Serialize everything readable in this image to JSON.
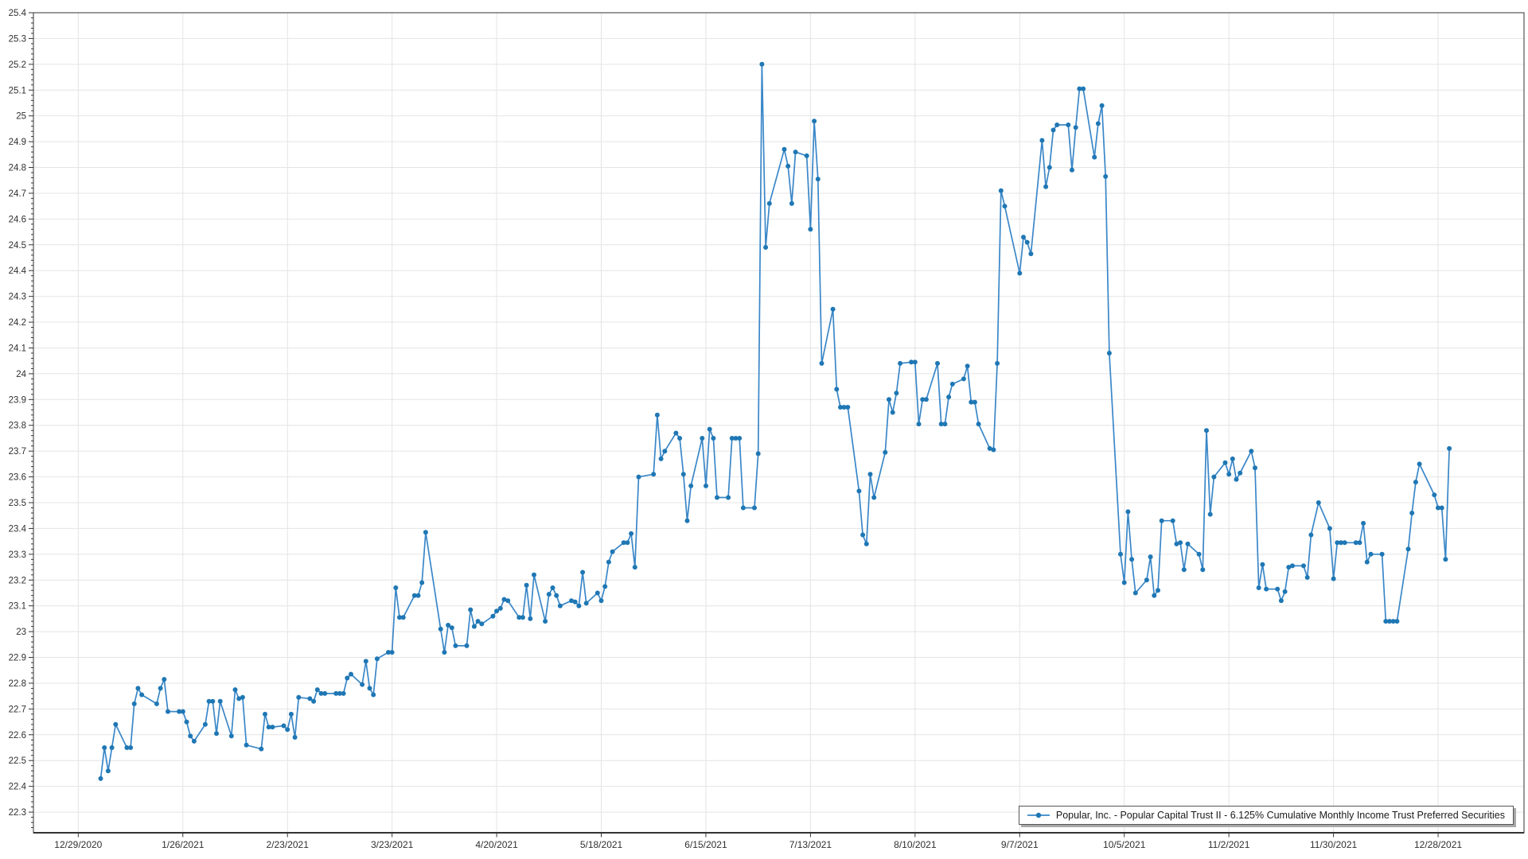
{
  "chart_data": {
    "type": "line",
    "title": "",
    "legend": {
      "label": "Popular, Inc. - Popular Capital Trust II - 6.125% Cumulative Monthly Income Trust Preferred Securities",
      "position": "bottom-right"
    },
    "grid": true,
    "x_range": [
      "2020-12-17",
      "2022-01-20"
    ],
    "y_range": [
      22.22,
      25.4
    ],
    "y_ticks": {
      "max": 25.4,
      "step": 0.1,
      "minor_step": 0.02
    },
    "y_tick_labels": [
      "25.4",
      "25.3",
      "25.2",
      "25.1",
      "25",
      "24.9",
      "24.8",
      "24.7",
      "24.6",
      "24.5",
      "24.4",
      "24.3",
      "24.2",
      "24.1",
      "24",
      "23.9",
      "23.8",
      "23.7",
      "23.6",
      "23.5",
      "23.4",
      "23.3",
      "23.2",
      "23.1",
      "23",
      "22.9",
      "22.8",
      "22.7",
      "22.6",
      "22.5",
      "22.4",
      "22.3"
    ],
    "x_ticks": {
      "dates": [
        "2020-12-29",
        "2021-01-26",
        "2021-02-23",
        "2021-03-23",
        "2021-04-20",
        "2021-05-18",
        "2021-06-15",
        "2021-07-13",
        "2021-08-10",
        "2021-09-07",
        "2021-10-05",
        "2021-11-02",
        "2021-11-30",
        "2021-12-28"
      ],
      "labels": [
        "12/29/2020",
        "1/26/2021",
        "2/23/2021",
        "3/23/2021",
        "4/20/2021",
        "5/18/2021",
        "6/15/2021",
        "7/13/2021",
        "8/10/2021",
        "9/7/2021",
        "10/5/2021",
        "11/2/2021",
        "11/30/2021",
        "12/28/2021"
      ]
    },
    "colors": {
      "line": "#3a87c8",
      "marker": "#1f77b4",
      "grid": "#e4e4e4",
      "axis": "#333333",
      "tick_label": "#303030"
    },
    "series": [
      {
        "name": "Popular, Inc. - Popular Capital Trust II - 6.125% Cumulative Monthly Income Trust Preferred Securities",
        "dates": [
          "2021-01-04",
          "2021-01-05",
          "2021-01-06",
          "2021-01-07",
          "2021-01-08",
          "2021-01-11",
          "2021-01-12",
          "2021-01-13",
          "2021-01-14",
          "2021-01-15",
          "2021-01-19",
          "2021-01-20",
          "2021-01-21",
          "2021-01-22",
          "2021-01-25",
          "2021-01-26",
          "2021-01-27",
          "2021-01-28",
          "2021-01-29",
          "2021-02-01",
          "2021-02-02",
          "2021-02-03",
          "2021-02-04",
          "2021-02-05",
          "2021-02-08",
          "2021-02-09",
          "2021-02-10",
          "2021-02-11",
          "2021-02-12",
          "2021-02-16",
          "2021-02-17",
          "2021-02-18",
          "2021-02-19",
          "2021-02-22",
          "2021-02-23",
          "2021-02-24",
          "2021-02-25",
          "2021-02-26",
          "2021-03-01",
          "2021-03-02",
          "2021-03-03",
          "2021-03-04",
          "2021-03-05",
          "2021-03-08",
          "2021-03-09",
          "2021-03-10",
          "2021-03-11",
          "2021-03-12",
          "2021-03-15",
          "2021-03-16",
          "2021-03-17",
          "2021-03-18",
          "2021-03-19",
          "2021-03-22",
          "2021-03-23",
          "2021-03-24",
          "2021-03-25",
          "2021-03-26",
          "2021-03-29",
          "2021-03-30",
          "2021-03-31",
          "2021-04-01",
          "2021-04-05",
          "2021-04-06",
          "2021-04-07",
          "2021-04-08",
          "2021-04-09",
          "2021-04-12",
          "2021-04-13",
          "2021-04-14",
          "2021-04-15",
          "2021-04-16",
          "2021-04-19",
          "2021-04-20",
          "2021-04-21",
          "2021-04-22",
          "2021-04-23",
          "2021-04-26",
          "2021-04-27",
          "2021-04-28",
          "2021-04-29",
          "2021-04-30",
          "2021-05-03",
          "2021-05-04",
          "2021-05-05",
          "2021-05-06",
          "2021-05-07",
          "2021-05-10",
          "2021-05-11",
          "2021-05-12",
          "2021-05-13",
          "2021-05-14",
          "2021-05-17",
          "2021-05-18",
          "2021-05-19",
          "2021-05-20",
          "2021-05-21",
          "2021-05-24",
          "2021-05-25",
          "2021-05-26",
          "2021-05-27",
          "2021-05-28",
          "2021-06-01",
          "2021-06-02",
          "2021-06-03",
          "2021-06-04",
          "2021-06-07",
          "2021-06-08",
          "2021-06-09",
          "2021-06-10",
          "2021-06-11",
          "2021-06-14",
          "2021-06-15",
          "2021-06-16",
          "2021-06-17",
          "2021-06-18",
          "2021-06-21",
          "2021-06-22",
          "2021-06-23",
          "2021-06-24",
          "2021-06-25",
          "2021-06-28",
          "2021-06-29",
          "2021-06-30",
          "2021-07-01",
          "2021-07-02",
          "2021-07-06",
          "2021-07-07",
          "2021-07-08",
          "2021-07-09",
          "2021-07-12",
          "2021-07-13",
          "2021-07-14",
          "2021-07-15",
          "2021-07-16",
          "2021-07-19",
          "2021-07-20",
          "2021-07-21",
          "2021-07-22",
          "2021-07-23",
          "2021-07-26",
          "2021-07-27",
          "2021-07-28",
          "2021-07-29",
          "2021-07-30",
          "2021-08-02",
          "2021-08-03",
          "2021-08-04",
          "2021-08-05",
          "2021-08-06",
          "2021-08-09",
          "2021-08-10",
          "2021-08-11",
          "2021-08-12",
          "2021-08-13",
          "2021-08-16",
          "2021-08-17",
          "2021-08-18",
          "2021-08-19",
          "2021-08-20",
          "2021-08-23",
          "2021-08-24",
          "2021-08-25",
          "2021-08-26",
          "2021-08-27",
          "2021-08-30",
          "2021-08-31",
          "2021-09-01",
          "2021-09-02",
          "2021-09-03",
          "2021-09-07",
          "2021-09-08",
          "2021-09-09",
          "2021-09-10",
          "2021-09-13",
          "2021-09-14",
          "2021-09-15",
          "2021-09-16",
          "2021-09-17",
          "2021-09-20",
          "2021-09-21",
          "2021-09-22",
          "2021-09-23",
          "2021-09-24",
          "2021-09-27",
          "2021-09-28",
          "2021-09-29",
          "2021-09-30",
          "2021-10-01",
          "2021-10-04",
          "2021-10-05",
          "2021-10-06",
          "2021-10-07",
          "2021-10-08",
          "2021-10-11",
          "2021-10-12",
          "2021-10-13",
          "2021-10-14",
          "2021-10-15",
          "2021-10-18",
          "2021-10-19",
          "2021-10-20",
          "2021-10-21",
          "2021-10-22",
          "2021-10-25",
          "2021-10-26",
          "2021-10-27",
          "2021-10-28",
          "2021-10-29",
          "2021-11-01",
          "2021-11-02",
          "2021-11-03",
          "2021-11-04",
          "2021-11-05",
          "2021-11-08",
          "2021-11-09",
          "2021-11-10",
          "2021-11-11",
          "2021-11-12",
          "2021-11-15",
          "2021-11-16",
          "2021-11-17",
          "2021-11-18",
          "2021-11-19",
          "2021-11-22",
          "2021-11-23",
          "2021-11-24",
          "2021-11-26",
          "2021-11-29",
          "2021-11-30",
          "2021-12-01",
          "2021-12-02",
          "2021-12-03",
          "2021-12-06",
          "2021-12-07",
          "2021-12-08",
          "2021-12-09",
          "2021-12-10",
          "2021-12-13",
          "2021-12-14",
          "2021-12-15",
          "2021-12-16",
          "2021-12-17",
          "2021-12-20",
          "2021-12-21",
          "2021-12-22",
          "2021-12-23",
          "2021-12-27",
          "2021-12-28",
          "2021-12-29",
          "2021-12-30",
          "2021-12-31"
        ],
        "values": [
          22.43,
          22.55,
          22.46,
          22.55,
          22.64,
          22.55,
          22.55,
          22.72,
          22.78,
          22.755,
          22.72,
          22.78,
          22.815,
          22.69,
          22.69,
          22.69,
          22.65,
          22.595,
          22.575,
          22.64,
          22.73,
          22.73,
          22.605,
          22.73,
          22.595,
          22.775,
          22.74,
          22.745,
          22.56,
          22.545,
          22.68,
          22.63,
          22.63,
          22.635,
          22.62,
          22.68,
          22.59,
          22.745,
          22.74,
          22.73,
          22.775,
          22.76,
          22.76,
          22.76,
          22.76,
          22.76,
          22.82,
          22.835,
          22.795,
          22.885,
          22.78,
          22.755,
          22.895,
          22.92,
          22.92,
          23.17,
          23.055,
          23.055,
          23.14,
          23.14,
          23.19,
          23.385,
          23.01,
          22.92,
          23.025,
          23.015,
          22.945,
          22.945,
          23.085,
          23.02,
          23.04,
          23.03,
          23.06,
          23.08,
          23.09,
          23.125,
          23.12,
          23.055,
          23.055,
          23.18,
          23.05,
          23.22,
          23.04,
          23.145,
          23.17,
          23.14,
          23.1,
          23.12,
          23.115,
          23.1,
          23.23,
          23.11,
          23.15,
          23.12,
          23.175,
          23.27,
          23.31,
          23.345,
          23.345,
          23.38,
          23.25,
          23.6,
          23.61,
          23.84,
          23.67,
          23.7,
          23.77,
          23.75,
          23.61,
          23.43,
          23.565,
          23.75,
          23.565,
          23.785,
          23.75,
          23.52,
          23.52,
          23.75,
          23.75,
          23.75,
          23.48,
          23.48,
          23.69,
          25.2,
          24.49,
          24.66,
          24.87,
          24.805,
          24.66,
          24.86,
          24.845,
          24.56,
          24.98,
          24.755,
          24.04,
          24.25,
          23.94,
          23.87,
          23.87,
          23.87,
          23.545,
          23.375,
          23.34,
          23.61,
          23.52,
          23.695,
          23.9,
          23.85,
          23.925,
          24.04,
          24.045,
          24.045,
          23.805,
          23.9,
          23.9,
          24.04,
          23.805,
          23.805,
          23.91,
          23.96,
          23.98,
          24.03,
          23.89,
          23.89,
          23.805,
          23.71,
          23.705,
          24.04,
          24.71,
          24.65,
          24.39,
          24.53,
          24.51,
          24.465,
          24.905,
          24.725,
          24.8,
          24.945,
          24.965,
          24.965,
          24.79,
          24.955,
          25.105,
          25.105,
          24.84,
          24.97,
          25.04,
          24.765,
          24.08,
          23.3,
          23.19,
          23.465,
          23.28,
          23.15,
          23.2,
          23.29,
          23.14,
          23.16,
          23.43,
          23.43,
          23.34,
          23.345,
          23.24,
          23.34,
          23.3,
          23.24,
          23.78,
          23.455,
          23.6,
          23.655,
          23.61,
          23.67,
          23.59,
          23.615,
          23.7,
          23.635,
          23.17,
          23.26,
          23.165,
          23.165,
          23.12,
          23.155,
          23.25,
          23.255,
          23.255,
          23.21,
          23.375,
          23.5,
          23.4,
          23.205,
          23.345,
          23.345,
          23.345,
          23.345,
          23.345,
          23.42,
          23.27,
          23.3,
          23.3,
          23.04,
          23.04,
          23.04,
          23.04,
          23.32,
          23.46,
          23.58,
          23.65,
          23.53,
          23.48,
          23.48,
          23.28,
          23.71
        ]
      }
    ]
  }
}
